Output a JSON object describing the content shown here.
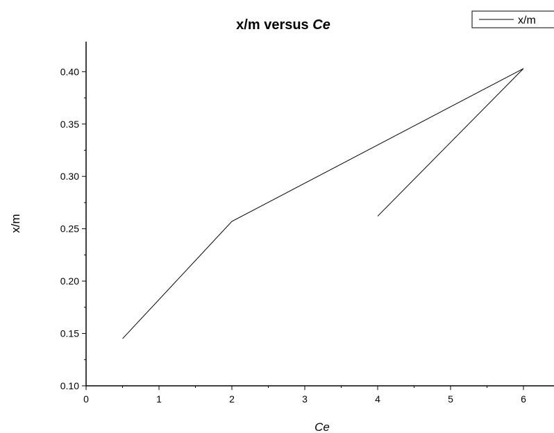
{
  "chart_data": {
    "type": "line",
    "title": "x/m versus Ce",
    "title_parts": [
      "x/m versus ",
      "Ce"
    ],
    "xlabel": "Ce",
    "ylabel": "x/m",
    "xlim": [
      0,
      6.4
    ],
    "ylim": [
      0.1,
      0.425
    ],
    "x_ticks": [
      0,
      1,
      2,
      3,
      4,
      5,
      6
    ],
    "y_ticks": [
      0.1,
      0.15,
      0.2,
      0.25,
      0.3,
      0.35,
      0.4
    ],
    "x_tick_labels": [
      "0",
      "1",
      "2",
      "3",
      "4",
      "5",
      "6"
    ],
    "y_tick_labels": [
      "0.10",
      "0.15",
      "0.20",
      "0.25",
      "0.30",
      "0.35",
      "0.40"
    ],
    "grid": false,
    "legend_position": "top-right",
    "series": [
      {
        "name": "x/m",
        "color": "#000000",
        "x": [
          0.5,
          2,
          6,
          4
        ],
        "y": [
          0.145,
          0.257,
          0.403,
          0.262
        ]
      }
    ]
  }
}
